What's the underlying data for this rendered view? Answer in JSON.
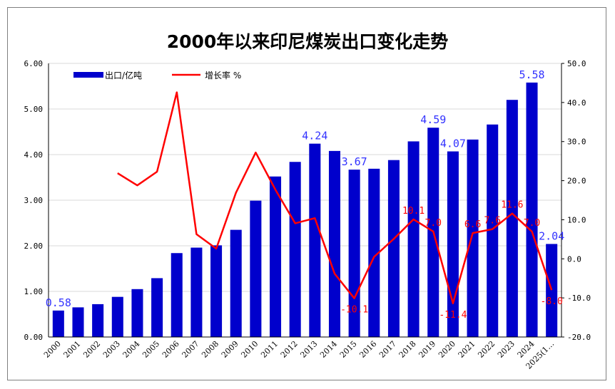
{
  "chart_data": {
    "type": "bar",
    "title": "2000年以来印尼煤炭出口变化走势",
    "categories": [
      "2000",
      "2001",
      "2002",
      "2003",
      "2004",
      "2005",
      "2006",
      "2007",
      "2008",
      "2009",
      "2010",
      "2011",
      "2012",
      "2013",
      "2014",
      "2015",
      "2016",
      "2017",
      "2018",
      "2019",
      "2020",
      "2021",
      "2022",
      "2023",
      "2024",
      "2025(1…"
    ],
    "series": [
      {
        "name": "出口/亿吨",
        "type": "bar",
        "axis": "left",
        "color": "#0000cc",
        "values": [
          0.58,
          0.65,
          0.72,
          0.88,
          1.05,
          1.29,
          1.84,
          1.96,
          2.01,
          2.35,
          2.99,
          3.52,
          3.84,
          4.24,
          4.08,
          3.67,
          3.69,
          3.88,
          4.29,
          4.59,
          4.07,
          4.33,
          4.66,
          5.2,
          5.58,
          2.04
        ]
      },
      {
        "name": "增长率 %",
        "type": "line",
        "axis": "right",
        "color": "#ff0000",
        "values": [
          null,
          null,
          null,
          21.9,
          18.8,
          22.3,
          42.6,
          6.3,
          2.6,
          16.9,
          27.2,
          17.7,
          9.1,
          10.4,
          -3.8,
          -10.1,
          0.5,
          5.1,
          10.1,
          7.0,
          -11.4,
          6.6,
          7.6,
          11.6,
          7.0,
          -8.0
        ]
      }
    ],
    "bar_labels": [
      {
        "index": 0,
        "text": "0.58"
      },
      {
        "index": 13,
        "text": "4.24"
      },
      {
        "index": 15,
        "text": "3.67"
      },
      {
        "index": 19,
        "text": "4.59"
      },
      {
        "index": 20,
        "text": "4.07"
      },
      {
        "index": 24,
        "text": "5.58"
      },
      {
        "index": 25,
        "text": "2.04"
      }
    ],
    "line_labels": [
      {
        "index": 15,
        "text": "-10.1"
      },
      {
        "index": 18,
        "text": "10.1"
      },
      {
        "index": 19,
        "text": "7.0"
      },
      {
        "index": 20,
        "text": "-11.4"
      },
      {
        "index": 21,
        "text": "6.6"
      },
      {
        "index": 22,
        "text": "7.6"
      },
      {
        "index": 23,
        "text": "11.6"
      },
      {
        "index": 24,
        "text": "7.0"
      },
      {
        "index": 25,
        "text": "-8.0"
      }
    ],
    "ylim_left": [
      0,
      6
    ],
    "yticks_left": [
      "0.00",
      "1.00",
      "2.00",
      "3.00",
      "4.00",
      "5.00",
      "6.00"
    ],
    "ylim_right": [
      -20,
      50
    ],
    "yticks_right": [
      "-20.0",
      "-10.0",
      "0.0",
      "10.0",
      "20.0",
      "30.0",
      "40.0",
      "50.0"
    ],
    "grid": true,
    "legend_position": "top-left"
  }
}
